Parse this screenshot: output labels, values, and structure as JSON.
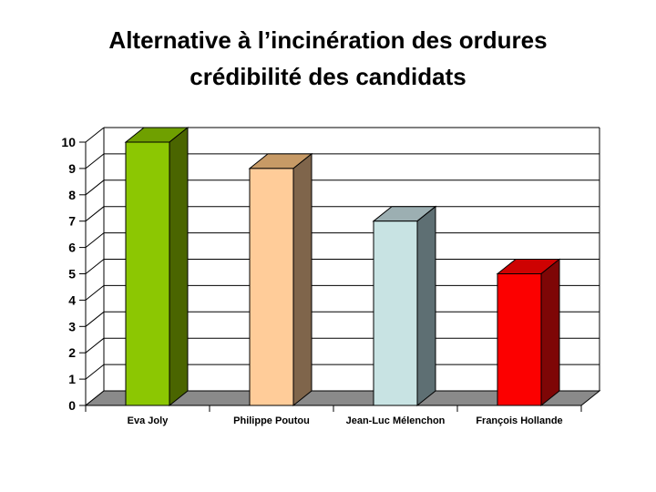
{
  "title": {
    "line1": "Alternative à l’incinération des ordures",
    "line2": "crédibilité des candidats"
  },
  "chart_data": {
    "type": "bar",
    "projection": "3d",
    "title": "Alternative à l’incinération des ordures crédibilité des candidats",
    "categories": [
      "Eva Joly",
      "Philippe Poutou",
      "Jean-Luc Mélenchon",
      "François Hollande"
    ],
    "values": [
      10,
      9,
      7,
      5
    ],
    "ylim": [
      0,
      10
    ],
    "yticks": [
      0,
      1,
      2,
      3,
      4,
      5,
      6,
      7,
      8,
      9,
      10
    ],
    "xlabel": "",
    "ylabel": "",
    "grid": true,
    "legend": false,
    "bar_colors": [
      {
        "front": "#8CC702",
        "top": "#6FA000",
        "side": "#4A6500"
      },
      {
        "front": "#FFCC99",
        "top": "#C79A66",
        "side": "#7F654B"
      },
      {
        "front": "#C8E3E3",
        "top": "#9CAFB2",
        "side": "#5E6F73"
      },
      {
        "front": "#FC0000",
        "top": "#CE0202",
        "side": "#7E0606"
      }
    ],
    "floor_color": "#8A8A8A",
    "wall_color": "#FFFFFF",
    "outline_color": "#000000"
  }
}
